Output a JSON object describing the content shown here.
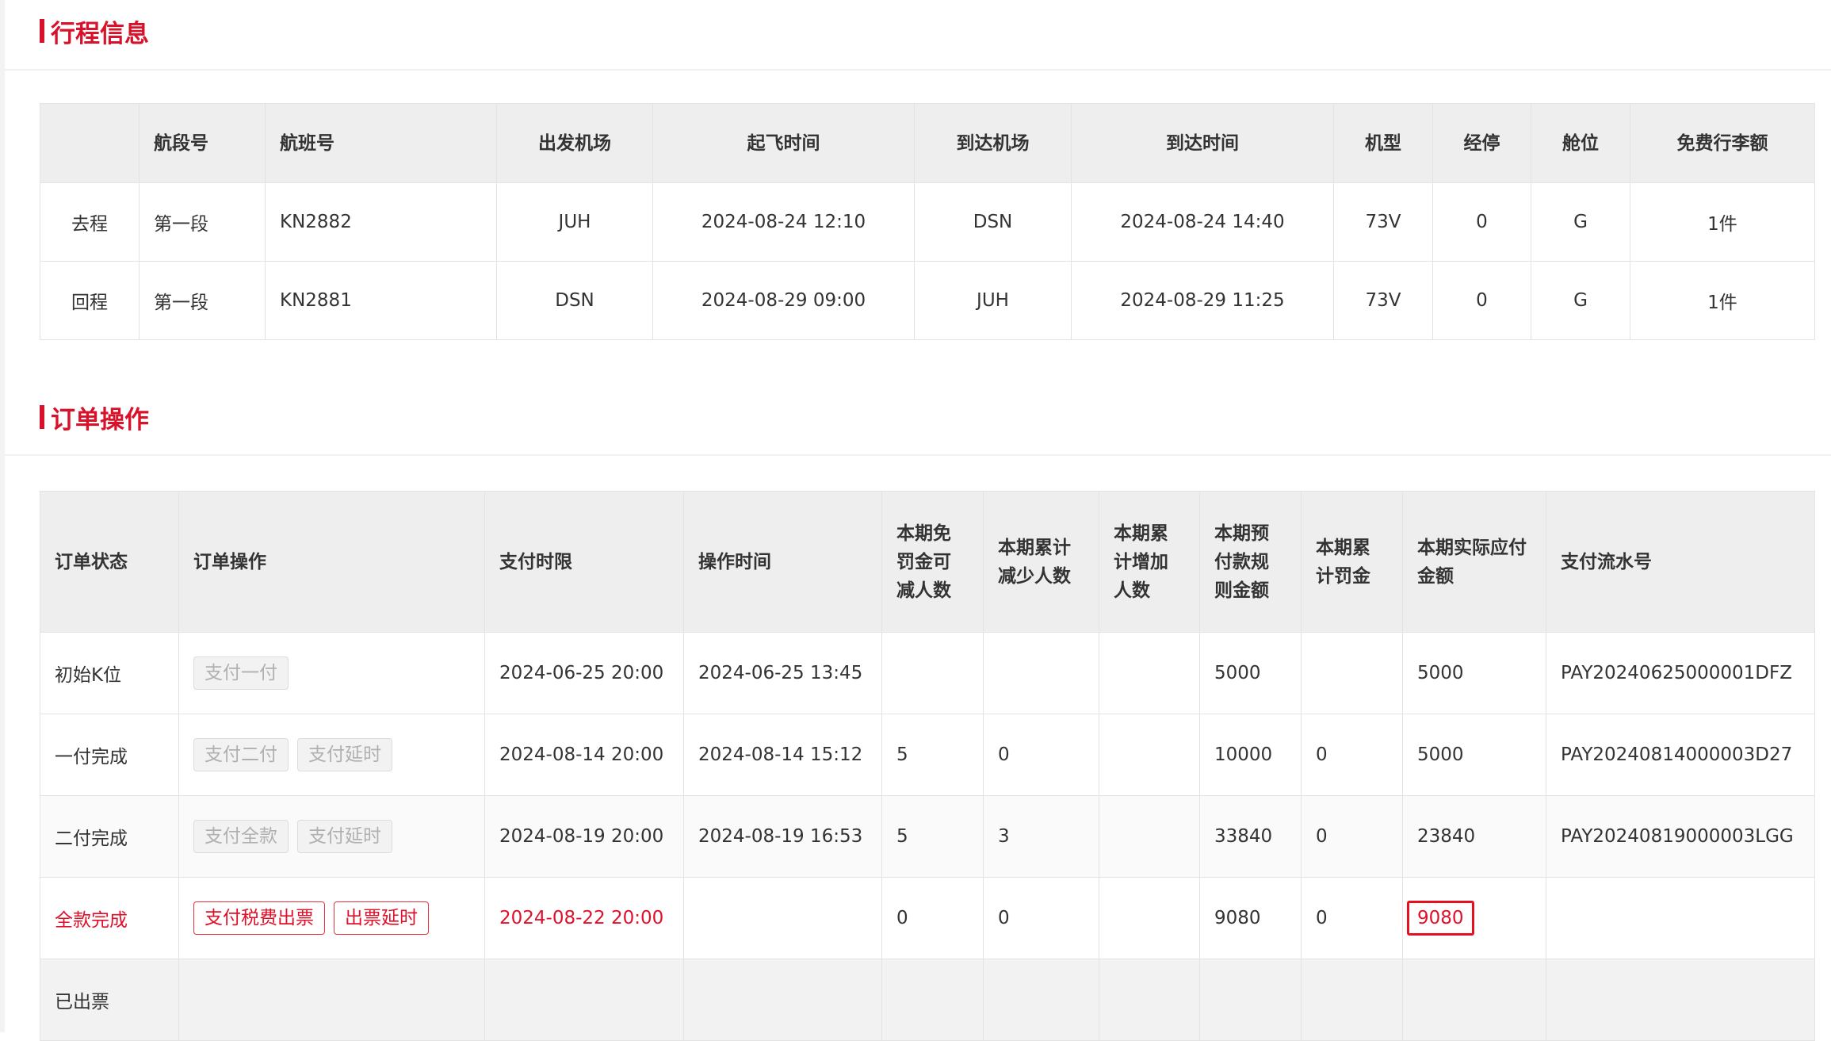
{
  "itinerary": {
    "title": "行程信息",
    "headers": [
      "",
      "航段号",
      "航班号",
      "出发机场",
      "起飞时间",
      "到达机场",
      "到达时间",
      "机型",
      "经停",
      "舱位",
      "免费行李额"
    ],
    "rows": [
      [
        "去程",
        "第一段",
        "KN2882",
        "JUH",
        "2024-08-24 12:10",
        "DSN",
        "2024-08-24 14:40",
        "73V",
        "0",
        "G",
        "1件"
      ],
      [
        "回程",
        "第一段",
        "KN2881",
        "DSN",
        "2024-08-29 09:00",
        "JUH",
        "2024-08-29 11:25",
        "73V",
        "0",
        "G",
        "1件"
      ]
    ]
  },
  "order_ops": {
    "title": "订单操作",
    "headers": [
      "订单状态",
      "订单操作",
      "支付时限",
      "操作时间",
      "本期免罚金可减人数",
      "本期累计减少人数",
      "本期累计增加人数",
      "本期预付款规则金额",
      "本期累计罚金",
      "本期实际应付金额",
      "支付流水号"
    ],
    "rows": [
      {
        "status": "初始K位",
        "actions": [
          "支付一付"
        ],
        "deadline": "2024-06-25 20:00",
        "op_time": "2024-06-25 13:45",
        "waivable": "",
        "reduced": "",
        "added": "",
        "rule_amount": "5000",
        "penalty": "",
        "payable": "5000",
        "serial": "PAY20240625000001DFZ"
      },
      {
        "status": "一付完成",
        "actions": [
          "支付二付",
          "支付延时"
        ],
        "deadline": "2024-08-14 20:00",
        "op_time": "2024-08-14 15:12",
        "waivable": "5",
        "reduced": "0",
        "added": "",
        "rule_amount": "10000",
        "penalty": "0",
        "payable": "5000",
        "serial": "PAY20240814000003D27"
      },
      {
        "status": "二付完成",
        "actions": [
          "支付全款",
          "支付延时"
        ],
        "deadline": "2024-08-19 20:00",
        "op_time": "2024-08-19 16:53",
        "waivable": "5",
        "reduced": "3",
        "added": "",
        "rule_amount": "33840",
        "penalty": "0",
        "payable": "23840",
        "serial": "PAY20240819000003LGG"
      },
      {
        "status": "全款完成",
        "actions": [
          "支付税费出票",
          "出票延时"
        ],
        "deadline": "2024-08-22 20:00",
        "op_time": "",
        "waivable": "0",
        "reduced": "0",
        "added": "",
        "rule_amount": "9080",
        "penalty": "0",
        "payable": "9080",
        "serial": ""
      },
      {
        "status": "已出票",
        "actions": [],
        "deadline": "",
        "op_time": "",
        "waivable": "",
        "reduced": "",
        "added": "",
        "rule_amount": "",
        "penalty": "",
        "payable": "",
        "serial": ""
      }
    ]
  },
  "colors": {
    "accent": "#d9122b",
    "header_bg": "#eeeeee",
    "highlight_border": "#e8101e"
  }
}
